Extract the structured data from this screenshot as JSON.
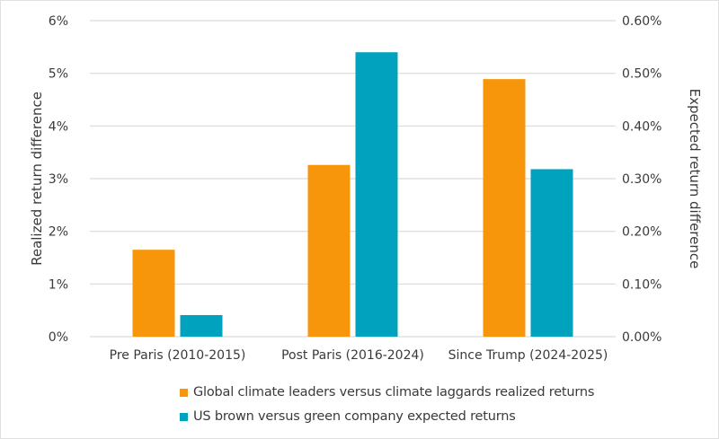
{
  "chart_data": {
    "type": "bar",
    "categories": [
      "Pre Paris (2010-2015)",
      "Post Paris (2016-2024)",
      "Since Trump (2024-2025)"
    ],
    "series": [
      {
        "name": "Global climate leaders versus climate laggards realized returns",
        "axis": "left",
        "values": [
          1.65,
          3.26,
          4.89
        ],
        "color": "#f7960a"
      },
      {
        "name": "US brown versus green company expected returns",
        "axis": "right",
        "values": [
          0.041,
          0.54,
          0.318
        ],
        "color": "#00a2bd"
      }
    ],
    "ylabel": "Realized return difference",
    "y2label": "Expected return difference",
    "ylim": [
      0,
      6
    ],
    "y2lim": [
      0,
      0.6
    ],
    "yticks": [
      "0%",
      "1%",
      "2%",
      "3%",
      "4%",
      "5%",
      "6%"
    ],
    "y2ticks": [
      "0.00%",
      "0.10%",
      "0.20%",
      "0.30%",
      "0.40%",
      "0.50%",
      "0.60%"
    ],
    "grid": true,
    "legend": "bottom"
  }
}
